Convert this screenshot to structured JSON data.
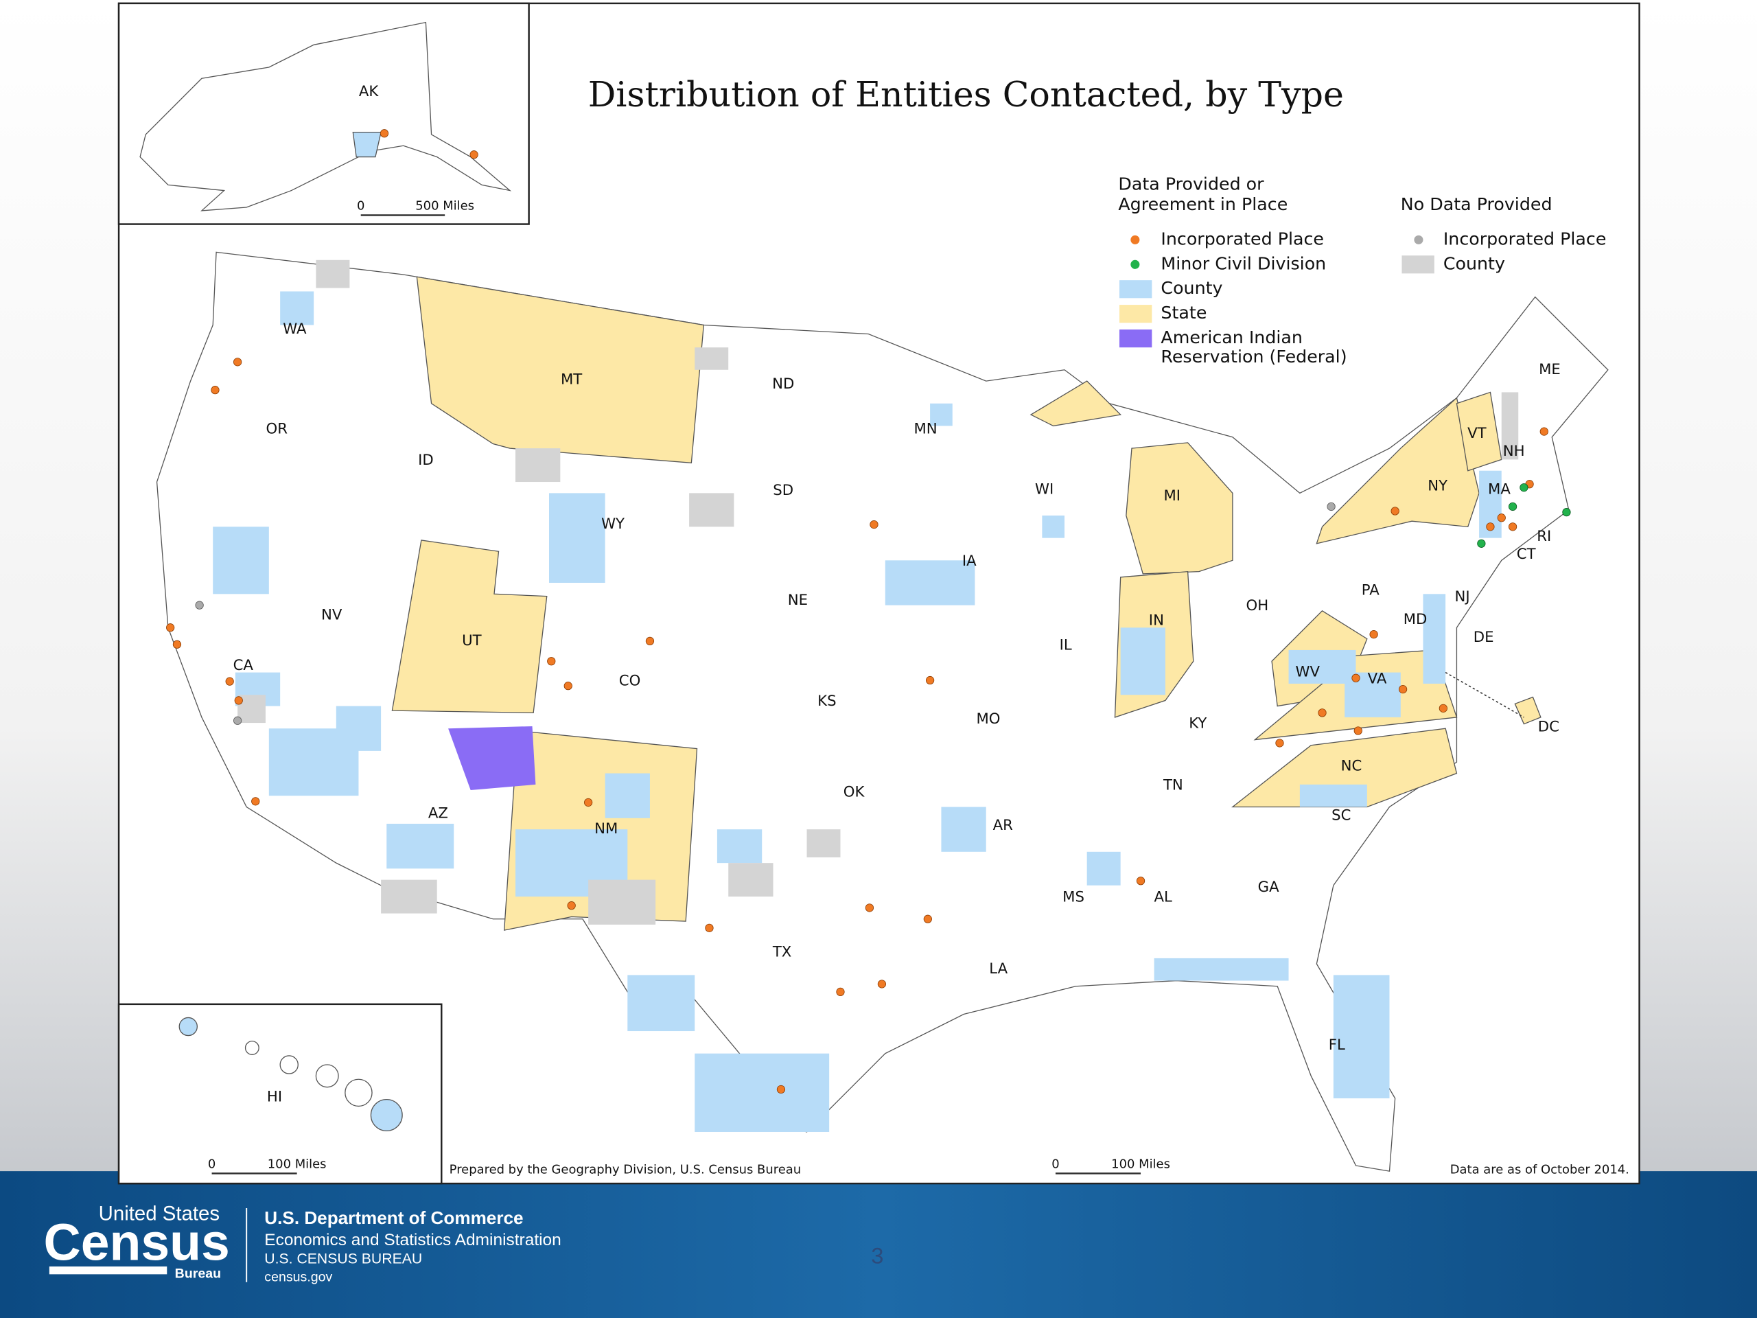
{
  "title": "Distribution of Entities Contacted, by Type",
  "legend": {
    "provided_heading": [
      "Data Provided or",
      "Agreement in Place"
    ],
    "provided_items": [
      "Incorporated Place",
      "Minor Civil Division",
      "County",
      "State",
      [
        "American Indian",
        "Reservation (Federal)"
      ]
    ],
    "no_data_heading": "No Data Provided",
    "no_data_items": [
      "Incorporated Place",
      "County"
    ]
  },
  "state_labels": [
    "AK",
    "WA",
    "OR",
    "ID",
    "MT",
    "ND",
    "SD",
    "WY",
    "NV",
    "UT",
    "CO",
    "NE",
    "CA",
    "AZ",
    "NM",
    "KS",
    "OK",
    "TX",
    "MN",
    "IA",
    "MO",
    "AR",
    "LA",
    "WI",
    "IL",
    "MI",
    "IN",
    "OH",
    "KY",
    "TN",
    "MS",
    "AL",
    "GA",
    "FL",
    "SC",
    "NC",
    "VA",
    "WV",
    "PA",
    "NY",
    "VT",
    "NH",
    "ME",
    "MA",
    "RI",
    "CT",
    "NJ",
    "DE",
    "MD",
    "DC",
    "HI"
  ],
  "scale_bars": {
    "alaska": [
      "0",
      "500 Miles"
    ],
    "hawaii": [
      "0",
      "100 Miles"
    ],
    "main": [
      "0",
      "100 Miles"
    ]
  },
  "credit": "Prepared by the Geography Division, U.S. Census Bureau",
  "data_date": "Data are as of October 2014.",
  "footer": {
    "logo": [
      "United States",
      "Census",
      "Bureau"
    ],
    "agency": [
      "U.S. Department of Commerce",
      "Economics and Statistics Administration",
      "U.S. CENSUS BUREAU",
      "census.gov"
    ],
    "page_number": "3"
  }
}
